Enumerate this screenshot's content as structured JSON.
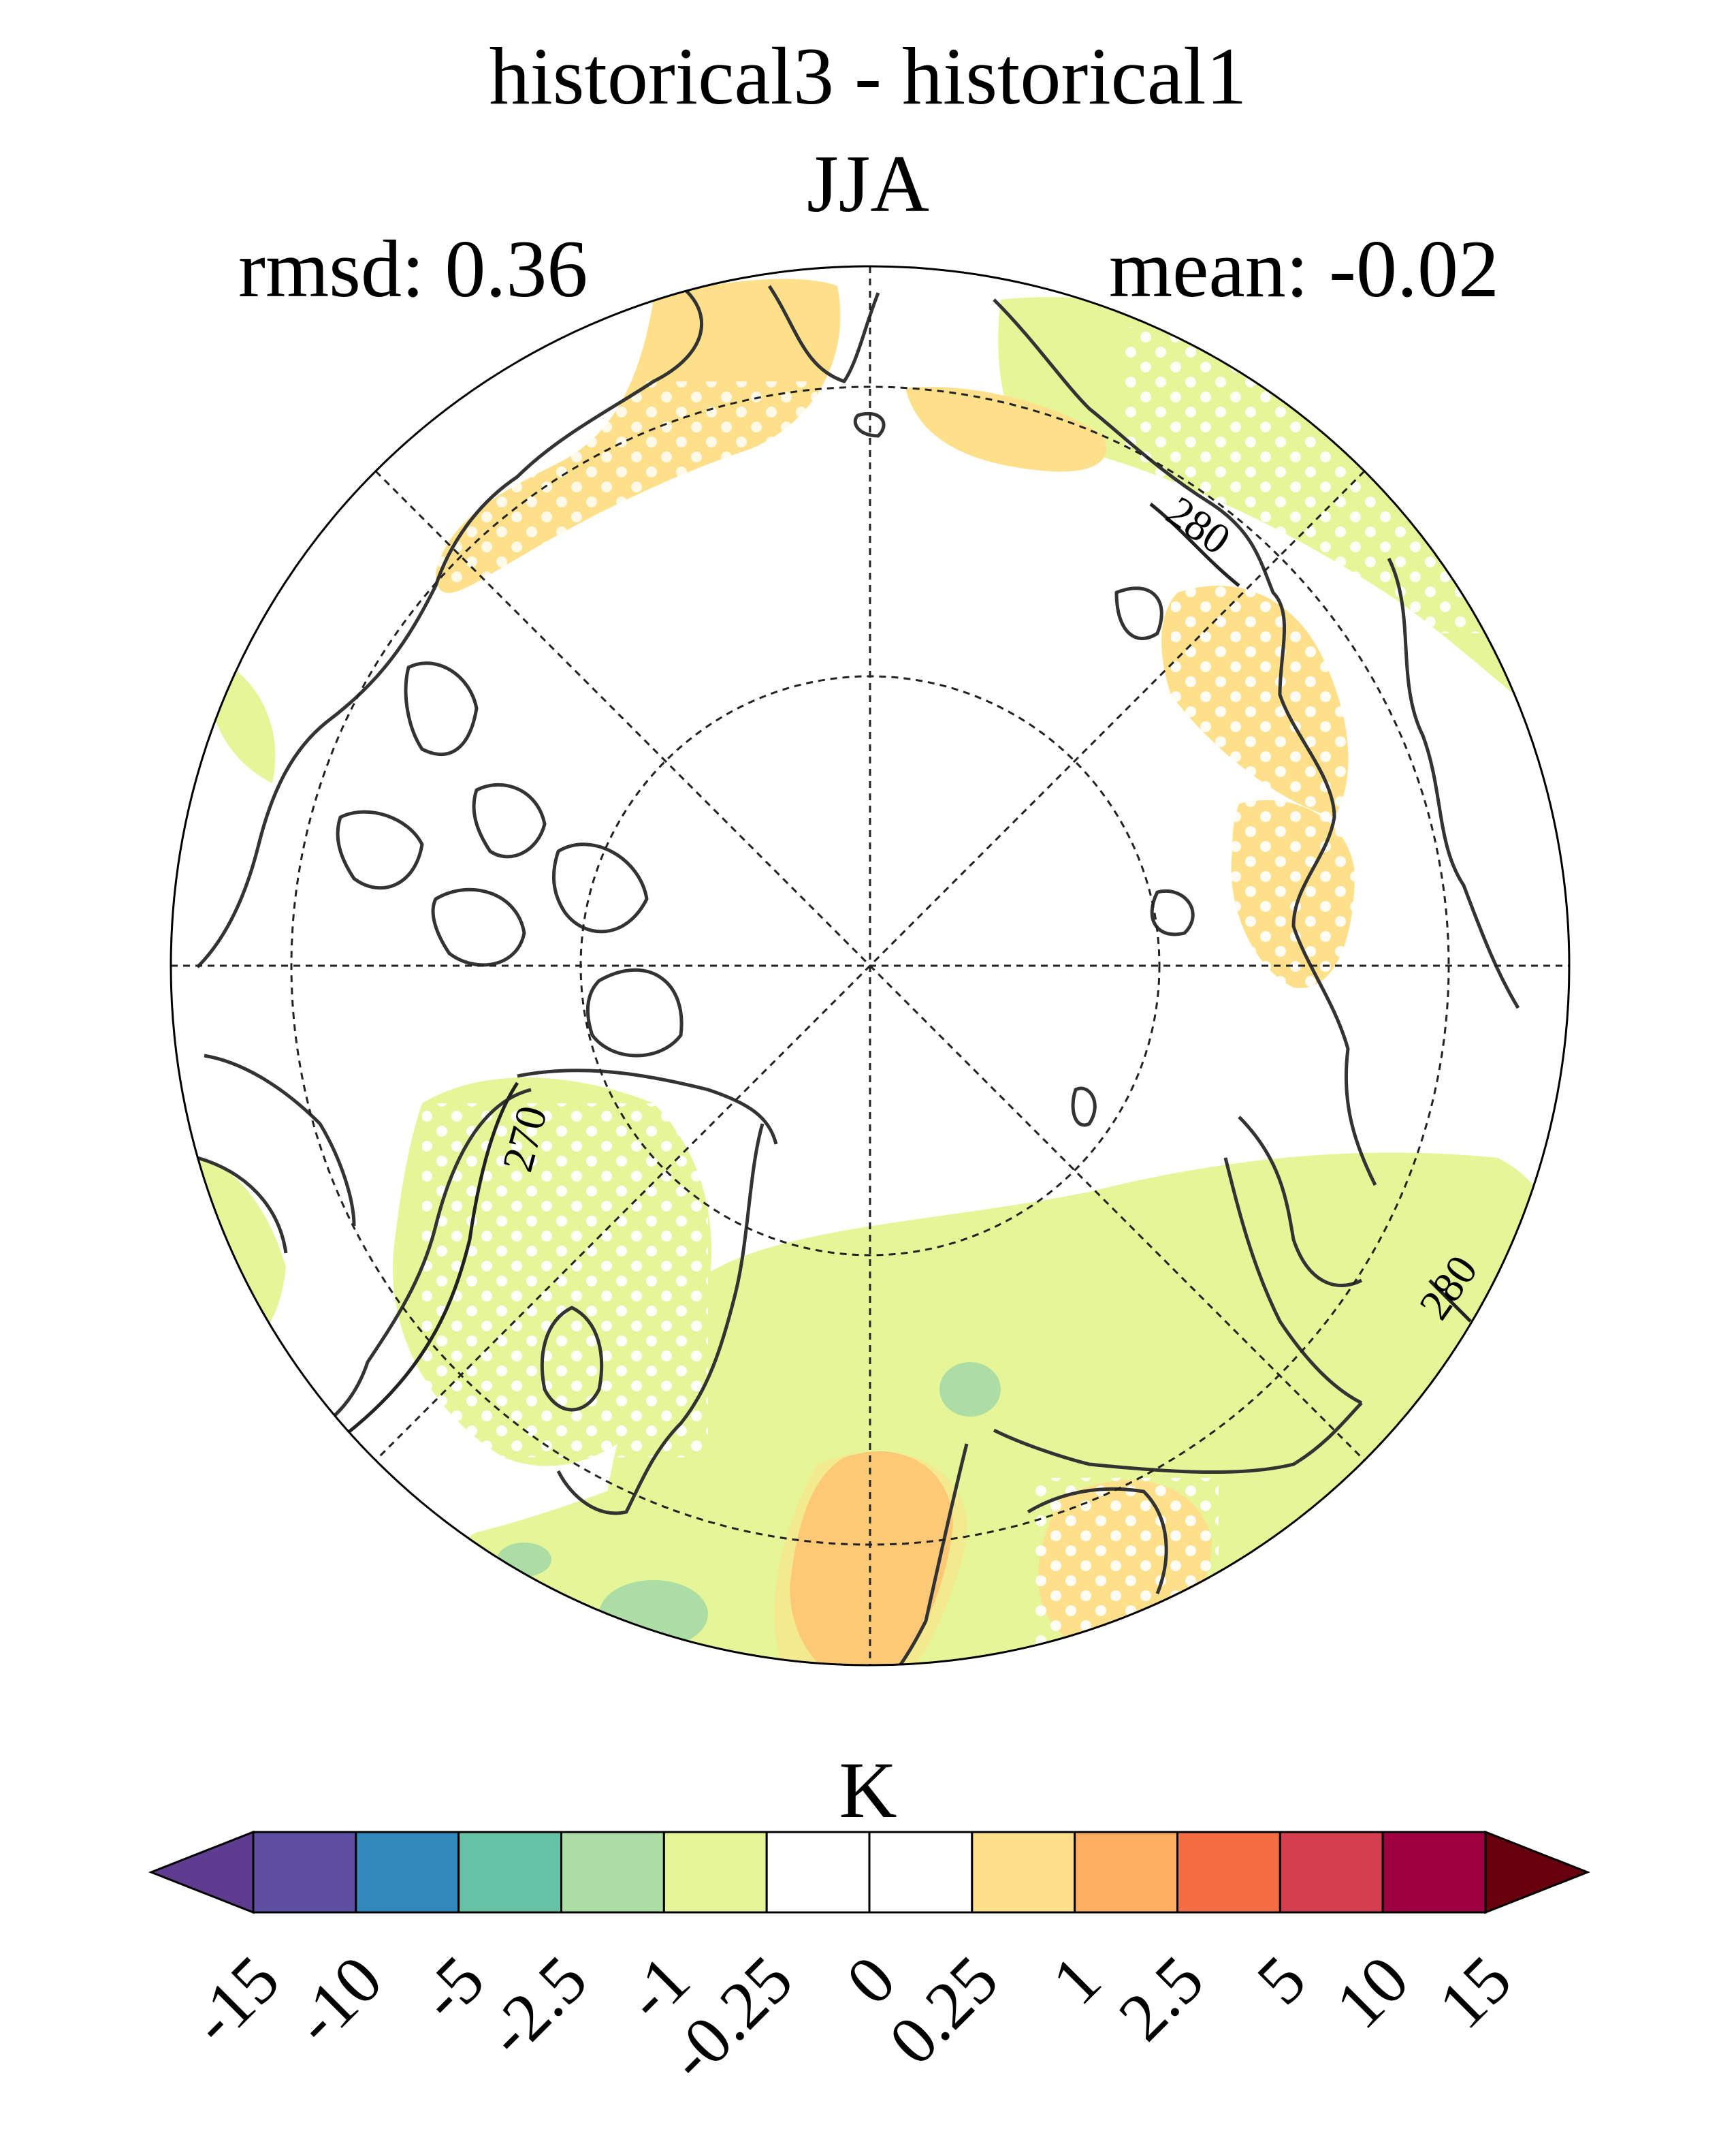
{
  "header": {
    "title": "historical3 - historical1",
    "season": "JJA",
    "rmsd": "rmsd: 0.36",
    "mean": "mean: -0.02"
  },
  "map": {
    "projection": "north polar stereographic",
    "contour_labels": [
      "280",
      "280",
      "270"
    ],
    "stippling": "white dots mark significant regions",
    "colors": {
      "coastline": "#333333",
      "graticule": "#222222"
    }
  },
  "colorbar": {
    "unit": "K",
    "ticks": [
      "-15",
      "-10",
      "-5",
      "-2.5",
      "-1",
      "-0.25",
      "0",
      "0.25",
      "1",
      "2.5",
      "5",
      "10",
      "15"
    ],
    "under_color": "#5e3c8f",
    "over_color": "#67000d",
    "colors": [
      "#5e4fa2",
      "#3288bd",
      "#66c2a5",
      "#abdda4",
      "#e6f598",
      "#ffffff",
      "#ffffff",
      "#fee08b",
      "#fdae61",
      "#f46d43",
      "#d53e4f",
      "#9e0142"
    ]
  }
}
